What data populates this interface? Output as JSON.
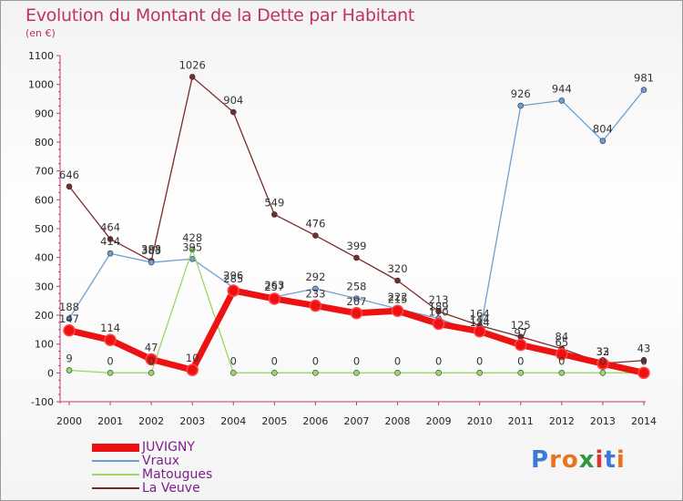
{
  "title": "Evolution du Montant de la Dette par Habitant",
  "subtitle": "(en €)",
  "logo": {
    "text": "Proxiti",
    "colors": [
      "#3c78d8",
      "#e9731c",
      "#e9731c",
      "#2e9a3c",
      "#d43b2a",
      "#3c78d8",
      "#e9731c"
    ]
  },
  "chart_data": {
    "type": "line",
    "title": "Evolution du Montant de la Dette par Habitant",
    "ylabel": "(en €)",
    "xlabel": "",
    "x": [
      "2000",
      "2001",
      "2002",
      "2003",
      "2004",
      "2005",
      "2006",
      "2007",
      "2008",
      "2009",
      "2010",
      "2011",
      "2012",
      "2013",
      "2014"
    ],
    "yticks": [
      "-100",
      "0",
      "100",
      "200",
      "300",
      "400",
      "500",
      "600",
      "700",
      "800",
      "900",
      "1000",
      "1100"
    ],
    "ylim": [
      -100,
      1100
    ],
    "grid": false,
    "legend_position": "bottom-left",
    "series": [
      {
        "name": "La Veuve",
        "color": "#7a2a2a",
        "width": 1.3,
        "values": [
          646,
          464,
          388,
          1026,
          904,
          549,
          476,
          399,
          320,
          213,
          164,
          125,
          84,
          33,
          43
        ],
        "labels": [
          "646",
          "464",
          "388",
          "1026",
          "904",
          "549",
          "476",
          "399",
          "320",
          "213",
          "164",
          "125",
          "84",
          "33",
          "43"
        ]
      },
      {
        "name": "Vraux",
        "color": "#6f9fd1",
        "width": 1.3,
        "values": [
          188,
          414,
          383,
          395,
          296,
          263,
          292,
          258,
          222,
          189,
          134,
          926,
          944,
          804,
          981
        ],
        "labels": [
          "188",
          "414",
          "383",
          "395",
          "296",
          "263",
          "292",
          "258",
          "222",
          "189",
          "134",
          "926",
          "944",
          "804",
          "981"
        ]
      },
      {
        "name": "Matougues",
        "color": "#97d86a",
        "width": 1.3,
        "values": [
          9,
          0,
          0,
          428,
          0,
          0,
          0,
          0,
          0,
          0,
          0,
          0,
          0,
          0,
          0
        ],
        "labels": [
          "9",
          "0",
          "0",
          "428",
          "0",
          "0",
          "0",
          "0",
          "0",
          "0",
          "0",
          "0",
          "0",
          "0",
          "0"
        ]
      },
      {
        "name": "JUVIGNY",
        "color": "#ee1111",
        "width": 7,
        "values": [
          147,
          114,
          47,
          10,
          285,
          257,
          233,
          207,
          215,
          170,
          144,
          97,
          65,
          32,
          0
        ],
        "labels": [
          "147",
          "114",
          "47",
          "10",
          "285",
          "257",
          "233",
          "207",
          "215",
          "170",
          "144",
          "97",
          "65",
          "32",
          "0"
        ]
      }
    ]
  },
  "legend": [
    {
      "name": "JUVIGNY",
      "color": "#ee1111",
      "thickness": 9
    },
    {
      "name": "Vraux",
      "color": "#6f9fd1",
      "thickness": 2
    },
    {
      "name": "Matougues",
      "color": "#97d86a",
      "thickness": 2
    },
    {
      "name": "La Veuve",
      "color": "#7a2a2a",
      "thickness": 2
    }
  ]
}
